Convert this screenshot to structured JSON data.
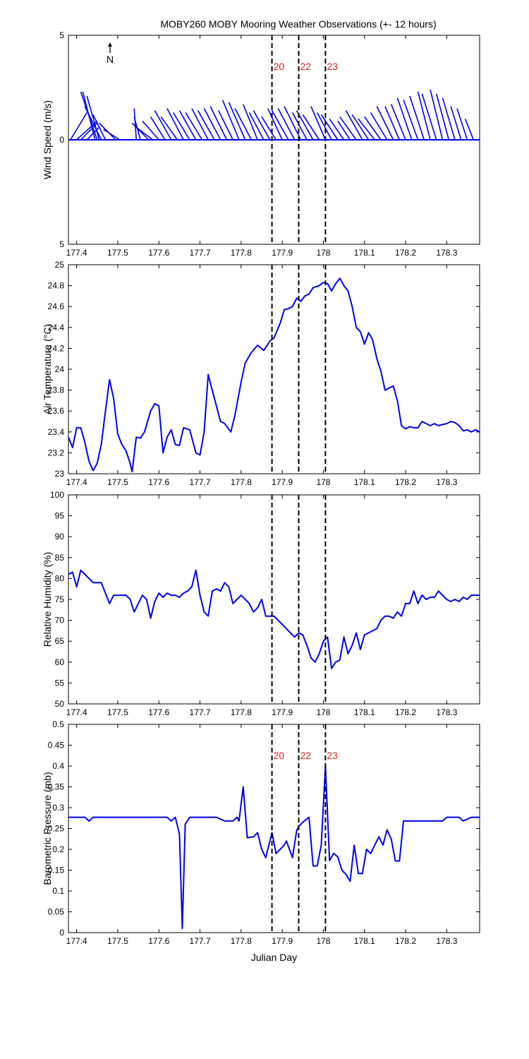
{
  "title": "MOBY260 MOBY Mooring Weather Observations (+- 12 hours)",
  "north_label": "N",
  "colors": {
    "series": "#0000ee",
    "marker_text": "#e02020",
    "axes": "#000000"
  },
  "chart_data": [
    {
      "id": "wind",
      "type": "line",
      "style": "stick-vectors",
      "ylabel": "Wind Speed (m/s)",
      "xlabel": "",
      "xlim": [
        177.38,
        178.38
      ],
      "ylim": [
        -5,
        5
      ],
      "x_ticks": [
        "177.4",
        "177.5",
        "177.6",
        "177.7",
        "177.8",
        "177.9",
        "178",
        "178.1",
        "178.2",
        "178.3"
      ],
      "y_ticks": [
        "5",
        "0",
        "5"
      ],
      "vertical_markers": [
        {
          "x": 177.875,
          "label": "20"
        },
        {
          "x": 177.94,
          "label": "22"
        },
        {
          "x": 178.005,
          "label": "23"
        }
      ],
      "vectors": [
        {
          "x": 177.385,
          "u": 0.04,
          "v": 1.3
        },
        {
          "x": 177.4,
          "u": 0.05,
          "v": 0.9
        },
        {
          "x": 177.41,
          "u": 0.04,
          "v": 0.8
        },
        {
          "x": 177.425,
          "u": 0.03,
          "v": 0.6
        },
        {
          "x": 177.445,
          "u": -0.03,
          "v": 2.3
        },
        {
          "x": 177.45,
          "u": -0.04,
          "v": 2.3
        },
        {
          "x": 177.455,
          "u": -0.03,
          "v": 2.1
        },
        {
          "x": 177.46,
          "u": -0.04,
          "v": 1.6
        },
        {
          "x": 177.47,
          "u": -0.03,
          "v": 1.2
        },
        {
          "x": 177.495,
          "u": -0.04,
          "v": 0.8
        },
        {
          "x": 177.505,
          "u": -0.04,
          "v": 0.5
        },
        {
          "x": 177.545,
          "u": -0.005,
          "v": 1.5
        },
        {
          "x": 177.555,
          "u": -0.015,
          "v": 1.1
        },
        {
          "x": 177.575,
          "u": -0.04,
          "v": 0.8
        },
        {
          "x": 177.585,
          "u": -0.04,
          "v": 0.6
        },
        {
          "x": 177.6,
          "u": -0.04,
          "v": 0.9
        },
        {
          "x": 177.615,
          "u": -0.035,
          "v": 1.1
        },
        {
          "x": 177.63,
          "u": -0.04,
          "v": 1.4
        },
        {
          "x": 177.645,
          "u": -0.04,
          "v": 1.1
        },
        {
          "x": 177.66,
          "u": -0.04,
          "v": 1.5
        },
        {
          "x": 177.675,
          "u": -0.04,
          "v": 1.3
        },
        {
          "x": 177.69,
          "u": -0.04,
          "v": 1.4
        },
        {
          "x": 177.705,
          "u": -0.04,
          "v": 1.3
        },
        {
          "x": 177.72,
          "u": -0.04,
          "v": 1.5
        },
        {
          "x": 177.735,
          "u": -0.04,
          "v": 1.4
        },
        {
          "x": 177.75,
          "u": -0.04,
          "v": 1.5
        },
        {
          "x": 177.765,
          "u": -0.04,
          "v": 1.6
        },
        {
          "x": 177.78,
          "u": -0.035,
          "v": 1.4
        },
        {
          "x": 177.795,
          "u": -0.04,
          "v": 1.9
        },
        {
          "x": 177.81,
          "u": -0.04,
          "v": 1.8
        },
        {
          "x": 177.825,
          "u": -0.04,
          "v": 1.5
        },
        {
          "x": 177.84,
          "u": -0.035,
          "v": 1.7
        },
        {
          "x": 177.855,
          "u": -0.035,
          "v": 1.3
        },
        {
          "x": 177.87,
          "u": -0.04,
          "v": 1.4
        },
        {
          "x": 177.885,
          "u": -0.035,
          "v": 1.1
        },
        {
          "x": 177.9,
          "u": -0.035,
          "v": 1.5
        },
        {
          "x": 177.915,
          "u": -0.04,
          "v": 1.4
        },
        {
          "x": 177.93,
          "u": -0.04,
          "v": 1.5
        },
        {
          "x": 177.945,
          "u": -0.04,
          "v": 1.6
        },
        {
          "x": 177.96,
          "u": -0.035,
          "v": 1.3
        },
        {
          "x": 177.975,
          "u": -0.04,
          "v": 1.4
        },
        {
          "x": 177.99,
          "u": -0.04,
          "v": 1.2
        },
        {
          "x": 178.005,
          "u": -0.035,
          "v": 1.6
        },
        {
          "x": 178.02,
          "u": -0.035,
          "v": 1.3
        },
        {
          "x": 178.035,
          "u": -0.04,
          "v": 1.2
        },
        {
          "x": 178.05,
          "u": -0.035,
          "v": 1.0
        },
        {
          "x": 178.065,
          "u": -0.03,
          "v": 0.9
        },
        {
          "x": 178.08,
          "u": -0.04,
          "v": 1.1
        },
        {
          "x": 178.095,
          "u": -0.04,
          "v": 1.4
        },
        {
          "x": 178.11,
          "u": -0.04,
          "v": 1.2
        },
        {
          "x": 178.125,
          "u": -0.04,
          "v": 1.0
        },
        {
          "x": 178.14,
          "u": -0.04,
          "v": 1.1
        },
        {
          "x": 178.155,
          "u": -0.04,
          "v": 1.3
        },
        {
          "x": 178.17,
          "u": -0.04,
          "v": 1.6
        },
        {
          "x": 178.185,
          "u": -0.035,
          "v": 1.6
        },
        {
          "x": 178.2,
          "u": -0.035,
          "v": 1.7
        },
        {
          "x": 178.215,
          "u": -0.035,
          "v": 2.0
        },
        {
          "x": 178.23,
          "u": -0.035,
          "v": 1.9
        },
        {
          "x": 178.245,
          "u": -0.035,
          "v": 2.1
        },
        {
          "x": 178.26,
          "u": -0.03,
          "v": 2.3
        },
        {
          "x": 178.275,
          "u": -0.035,
          "v": 2.2
        },
        {
          "x": 178.29,
          "u": -0.03,
          "v": 2.4
        },
        {
          "x": 178.305,
          "u": -0.03,
          "v": 2.2
        },
        {
          "x": 178.32,
          "u": -0.03,
          "v": 2.0
        },
        {
          "x": 178.335,
          "u": -0.025,
          "v": 1.6
        },
        {
          "x": 178.35,
          "u": -0.025,
          "v": 1.5
        },
        {
          "x": 178.365,
          "u": -0.02,
          "v": 1.0
        }
      ]
    },
    {
      "id": "airtemp",
      "type": "line",
      "ylabel": "Air Temperature (°C)",
      "xlabel": "",
      "xlim": [
        177.38,
        178.38
      ],
      "ylim": [
        23,
        25
      ],
      "x_ticks": [
        "177.4",
        "177.5",
        "177.6",
        "177.7",
        "177.8",
        "177.9",
        "178",
        "178.1",
        "178.2",
        "178.3"
      ],
      "y_ticks": [
        "23",
        "23.2",
        "23.4",
        "23.6",
        "23.8",
        "24",
        "24.2",
        "24.4",
        "24.6",
        "24.8",
        "25"
      ],
      "vertical_markers": [
        {
          "x": 177.875
        },
        {
          "x": 177.94
        },
        {
          "x": 178.005
        }
      ],
      "x": [
        177.38,
        177.39,
        177.4,
        177.41,
        177.42,
        177.43,
        177.44,
        177.45,
        177.46,
        177.47,
        177.48,
        177.49,
        177.5,
        177.51,
        177.52,
        177.53,
        177.535,
        177.545,
        177.555,
        177.565,
        177.58,
        177.59,
        177.6,
        177.61,
        177.62,
        177.63,
        177.64,
        177.65,
        177.66,
        177.675,
        177.69,
        177.7,
        177.71,
        177.72,
        177.735,
        177.75,
        177.76,
        177.775,
        177.785,
        177.8,
        177.81,
        177.825,
        177.84,
        177.855,
        177.87,
        177.88,
        177.895,
        177.905,
        177.915,
        177.925,
        177.935,
        177.945,
        177.955,
        177.965,
        177.975,
        177.99,
        178.0,
        178.01,
        178.02,
        178.03,
        178.04,
        178.05,
        178.06,
        178.07,
        178.08,
        178.09,
        178.1,
        178.11,
        178.12,
        178.13,
        178.14,
        178.15,
        178.16,
        178.17,
        178.18,
        178.19,
        178.2,
        178.21,
        178.22,
        178.23,
        178.24,
        178.25,
        178.26,
        178.27,
        178.28,
        178.29,
        178.3,
        178.31,
        178.32,
        178.33,
        178.34,
        178.35,
        178.36,
        178.37,
        178.38
      ],
      "y": [
        23.35,
        23.25,
        23.44,
        23.44,
        23.3,
        23.12,
        23.03,
        23.1,
        23.28,
        23.6,
        23.9,
        23.72,
        23.38,
        23.28,
        23.22,
        23.1,
        23.02,
        23.35,
        23.34,
        23.4,
        23.6,
        23.67,
        23.65,
        23.2,
        23.35,
        23.42,
        23.28,
        23.27,
        23.44,
        23.42,
        23.2,
        23.18,
        23.4,
        23.95,
        23.72,
        23.5,
        23.48,
        23.4,
        23.56,
        23.88,
        24.06,
        24.16,
        24.23,
        24.18,
        24.27,
        24.3,
        24.44,
        24.57,
        24.58,
        24.6,
        24.68,
        24.65,
        24.7,
        24.72,
        24.78,
        24.8,
        24.83,
        24.82,
        24.75,
        24.82,
        24.87,
        24.8,
        24.75,
        24.6,
        24.4,
        24.36,
        24.24,
        24.35,
        24.28,
        24.1,
        23.98,
        23.8,
        23.82,
        23.84,
        23.7,
        23.46,
        23.43,
        23.45,
        23.44,
        23.44,
        23.5,
        23.48,
        23.46,
        23.48,
        23.46,
        23.47,
        23.48,
        23.5,
        23.49,
        23.46,
        23.41,
        23.42,
        23.4,
        23.42,
        23.4
      ]
    },
    {
      "id": "humidity",
      "type": "line",
      "ylabel": "Relative Humidity (%)",
      "xlabel": "",
      "xlim": [
        177.38,
        178.38
      ],
      "ylim": [
        50,
        100
      ],
      "x_ticks": [
        "177.4",
        "177.5",
        "177.6",
        "177.7",
        "177.8",
        "177.9",
        "178",
        "178.1",
        "178.2",
        "178.3"
      ],
      "y_ticks": [
        "50",
        "55",
        "60",
        "65",
        "70",
        "75",
        "80",
        "85",
        "90",
        "95",
        "100"
      ],
      "vertical_markers": [
        {
          "x": 177.875
        },
        {
          "x": 177.94
        },
        {
          "x": 178.005
        }
      ],
      "x": [
        177.38,
        177.39,
        177.4,
        177.41,
        177.42,
        177.43,
        177.44,
        177.45,
        177.46,
        177.47,
        177.48,
        177.49,
        177.5,
        177.51,
        177.52,
        177.53,
        177.54,
        177.55,
        177.56,
        177.57,
        177.58,
        177.59,
        177.6,
        177.61,
        177.62,
        177.63,
        177.64,
        177.65,
        177.66,
        177.67,
        177.68,
        177.69,
        177.7,
        177.71,
        177.72,
        177.73,
        177.74,
        177.75,
        177.76,
        177.77,
        177.78,
        177.79,
        177.8,
        177.81,
        177.82,
        177.83,
        177.84,
        177.85,
        177.86,
        177.87,
        177.88,
        177.89,
        177.9,
        177.91,
        177.92,
        177.93,
        177.94,
        177.95,
        177.96,
        177.97,
        177.98,
        177.99,
        178.0,
        178.01,
        178.02,
        178.03,
        178.04,
        178.05,
        178.06,
        178.07,
        178.08,
        178.09,
        178.1,
        178.11,
        178.12,
        178.13,
        178.14,
        178.15,
        178.16,
        178.17,
        178.18,
        178.19,
        178.2,
        178.21,
        178.22,
        178.23,
        178.24,
        178.25,
        178.26,
        178.27,
        178.28,
        178.29,
        178.3,
        178.31,
        178.32,
        178.33,
        178.34,
        178.35,
        178.36,
        178.37,
        178.38
      ],
      "y": [
        81,
        81.5,
        78,
        82,
        81,
        80,
        79,
        79,
        79,
        76.5,
        74,
        76,
        76,
        76,
        76,
        75,
        72,
        74,
        76,
        75,
        70.5,
        74.5,
        76.5,
        75.5,
        76.5,
        76,
        76,
        75.5,
        76.5,
        77,
        78,
        82,
        76,
        72,
        71,
        77,
        77.5,
        77,
        79,
        78,
        74,
        75,
        76,
        75,
        74,
        72,
        73,
        75,
        71,
        71,
        71,
        70,
        69,
        68,
        67,
        66,
        67,
        66.5,
        64,
        61,
        60,
        62,
        65,
        66,
        58.5,
        60,
        60.5,
        66,
        62,
        64,
        67,
        63,
        66.5,
        67,
        67.5,
        68,
        70,
        71,
        71,
        70.5,
        72,
        71,
        74,
        74,
        77,
        74,
        76,
        75,
        75.5,
        75.5,
        77,
        76,
        75,
        74.5,
        75,
        74.5,
        75.5,
        75,
        76,
        76,
        76
      ]
    },
    {
      "id": "pressure",
      "type": "line",
      "ylabel": "Barometric Pressure (mb)",
      "xlabel": "Julian Day",
      "xlim": [
        177.38,
        178.38
      ],
      "ylim": [
        0,
        0.5
      ],
      "x_ticks": [
        "177.4",
        "177.5",
        "177.6",
        "177.7",
        "177.8",
        "177.9",
        "178",
        "178.1",
        "178.2",
        "178.3"
      ],
      "y_ticks": [
        "0",
        "0.05",
        "0.1",
        "0.15",
        "0.2",
        "0.25",
        "0.3",
        "0.35",
        "0.4",
        "0.45",
        "0.5"
      ],
      "vertical_markers": [
        {
          "x": 177.875,
          "label": "20"
        },
        {
          "x": 177.94,
          "label": "22"
        },
        {
          "x": 178.005,
          "label": "23"
        }
      ],
      "x": [
        177.38,
        177.4,
        177.42,
        177.43,
        177.44,
        177.46,
        177.5,
        177.54,
        177.58,
        177.62,
        177.63,
        177.64,
        177.65,
        177.657,
        177.664,
        177.675,
        177.7,
        177.74,
        177.76,
        177.78,
        177.79,
        177.795,
        177.805,
        177.815,
        177.83,
        177.84,
        177.85,
        177.86,
        177.875,
        177.885,
        177.905,
        177.91,
        177.925,
        177.935,
        177.94,
        177.95,
        177.965,
        177.975,
        177.985,
        177.995,
        178.005,
        178.015,
        178.025,
        178.035,
        178.045,
        178.055,
        178.065,
        178.075,
        178.085,
        178.095,
        178.105,
        178.115,
        178.125,
        178.135,
        178.145,
        178.155,
        178.165,
        178.175,
        178.185,
        178.195,
        178.205,
        178.25,
        178.29,
        178.3,
        178.33,
        178.34,
        178.36,
        178.38
      ],
      "y": [
        0.277,
        0.277,
        0.277,
        0.268,
        0.277,
        0.277,
        0.277,
        0.277,
        0.277,
        0.277,
        0.268,
        0.277,
        0.237,
        0.01,
        0.26,
        0.277,
        0.277,
        0.277,
        0.268,
        0.268,
        0.277,
        0.268,
        0.35,
        0.228,
        0.23,
        0.24,
        0.2,
        0.18,
        0.24,
        0.19,
        0.21,
        0.22,
        0.18,
        0.245,
        0.255,
        0.265,
        0.277,
        0.16,
        0.16,
        0.21,
        0.4,
        0.173,
        0.19,
        0.182,
        0.15,
        0.14,
        0.123,
        0.21,
        0.142,
        0.142,
        0.2,
        0.19,
        0.21,
        0.23,
        0.21,
        0.247,
        0.225,
        0.172,
        0.172,
        0.268,
        0.268,
        0.268,
        0.268,
        0.277,
        0.277,
        0.268,
        0.277,
        0.277
      ]
    }
  ]
}
